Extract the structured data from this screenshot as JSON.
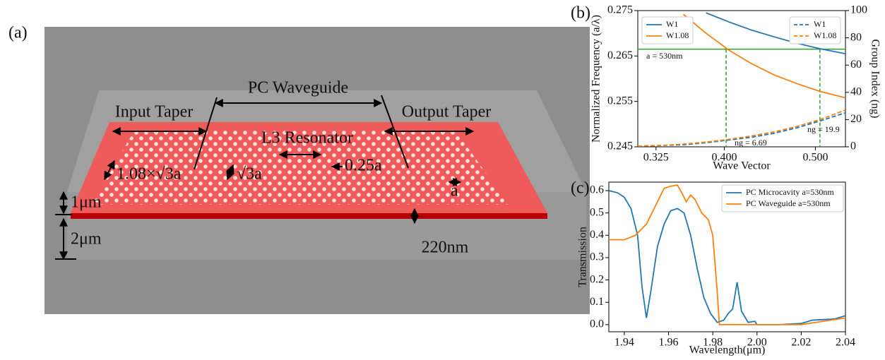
{
  "panel_a": {
    "panel_label": "(a)",
    "pc_waveguide": "PC Waveguide",
    "input_taper": "Input Taper",
    "output_taper": "Output Taper",
    "l3_resonator": "L3 Resonator",
    "taper_period": "1.08×√3a",
    "period": "√3a",
    "shift": "0.25a",
    "lattice": "a",
    "upper_cladding": "1μm",
    "lower_cladding": "2μm",
    "thickness": "220nm"
  },
  "chart_data": [
    {
      "type": "line",
      "panel_label": "(b)",
      "x_label": "Wave Vector",
      "y_label": "Normalized Frequency (a/λ)",
      "y2_label": "Group Index (ng)",
      "x": [
        0.305,
        0.33,
        0.355,
        0.38,
        0.405,
        0.43,
        0.455,
        0.48,
        0.505,
        0.533
      ],
      "xlim": [
        0.305,
        0.533
      ],
      "xticks": [
        0.325,
        {
          "value": 0.4,
          "label": "0.400"
        },
        {
          "value": 0.5,
          "label": "0.500"
        }
      ],
      "ylim": [
        0.245,
        0.275
      ],
      "yticks": [
        0.245,
        0.255,
        0.265,
        0.275
      ],
      "y2lim": [
        0,
        100
      ],
      "y2ticks": [
        0,
        20,
        40,
        60,
        80,
        100
      ],
      "series": [
        {
          "name": "W1",
          "color": "#1f77b4",
          "linestyle": "solid",
          "legend": "upper left",
          "values": [
            null,
            null,
            null,
            0.2745,
            0.2725,
            0.2707,
            0.2692,
            0.2678,
            0.2666,
            0.2655
          ]
        },
        {
          "name": "W1.08",
          "color": "#ff7f0e",
          "linestyle": "solid",
          "legend": "upper left",
          "values": [
            null,
            null,
            0.2742,
            0.27,
            0.2663,
            0.2633,
            0.2608,
            0.2589,
            0.2572,
            0.2558
          ]
        },
        {
          "name": "W1",
          "color": "#1f77b4",
          "linestyle": "dashed",
          "legend": "upper right",
          "axis": "y2",
          "values": [
            0.5,
            1,
            1.5,
            3,
            5,
            7,
            10,
            14,
            19,
            25
          ]
        },
        {
          "name": "W1.08",
          "color": "#ff7f0e",
          "linestyle": "dashed",
          "legend": "upper right",
          "axis": "y2",
          "values": [
            0.5,
            1,
            2,
            3.5,
            5.5,
            8,
            11,
            15,
            20,
            27
          ]
        }
      ],
      "reference_color": "#2ca02c",
      "hline": 0.2665,
      "vlines": [
        0.402,
        0.505
      ],
      "annotations": [
        "a = 530nm",
        "ng = 6.69",
        "ng = 19.9"
      ]
    },
    {
      "type": "line",
      "panel_label": "(c)",
      "x_label": "Wavelength(μm)",
      "y_label": "Transmission",
      "xlim": [
        1.933,
        2.04
      ],
      "xticks": [
        1.94,
        1.96,
        1.98,
        {
          "value": 2.0,
          "label": "2.00"
        },
        2.02,
        2.04
      ],
      "ylim": [
        -0.032,
        0.638
      ],
      "yticks": [
        {
          "value": 0,
          "label": "0.0"
        },
        0.1,
        0.2,
        0.3,
        0.4,
        0.5,
        0.6
      ],
      "series": [
        {
          "name": "PC Microcavity a=530nm",
          "color": "#1f77b4",
          "linestyle": "solid",
          "legend": "upper right",
          "x": [
            1.933,
            1.937,
            1.94,
            1.943,
            1.946,
            1.948,
            1.95,
            1.952,
            1.955,
            1.958,
            1.961,
            1.964,
            1.967,
            1.97,
            1.973,
            1.976,
            1.979,
            1.982,
            1.985,
            1.987,
            1.989,
            1.991,
            1.993,
            1.996,
            1.999,
            2.0,
            2.01,
            2.02,
            2.025,
            2.035,
            2.04
          ],
          "values": [
            0.6,
            0.59,
            0.57,
            0.52,
            0.4,
            0.17,
            0.03,
            0.15,
            0.35,
            0.45,
            0.51,
            0.52,
            0.5,
            0.4,
            0.25,
            0.12,
            0.05,
            0.01,
            0.02,
            0.05,
            0.07,
            0.19,
            0.06,
            0.01,
            0.015,
            0.0,
            0.0,
            0.005,
            0.02,
            0.025,
            0.04
          ]
        },
        {
          "name": "PC Waveguide a=530nm",
          "color": "#ff7f0e",
          "linestyle": "solid",
          "legend": "upper right",
          "x": [
            1.933,
            1.94,
            1.945,
            1.95,
            1.955,
            1.958,
            1.961,
            1.964,
            1.966,
            1.968,
            1.97,
            1.972,
            1.975,
            1.978,
            1.98,
            1.982,
            1.983,
            1.99,
            2.0,
            2.02,
            2.03,
            2.04
          ],
          "values": [
            0.38,
            0.38,
            0.4,
            0.45,
            0.55,
            0.61,
            0.62,
            0.625,
            0.59,
            0.55,
            0.58,
            0.56,
            0.5,
            0.47,
            0.4,
            0.15,
            0.0,
            0.0,
            0.0,
            0.0,
            0.015,
            0.03
          ]
        }
      ]
    }
  ]
}
